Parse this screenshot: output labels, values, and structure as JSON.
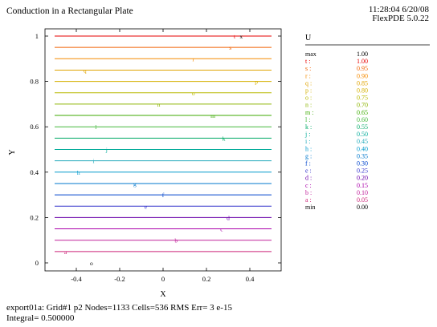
{
  "header": {
    "title": "Conduction in a Rectangular Plate",
    "timestamp": "11:28:04 6/20/08",
    "version": "FlexPDE 5.0.22"
  },
  "footer": {
    "line1": "export01a:  Grid#1  p2  Nodes=1133 Cells=536 RMS Err= 3 e-15",
    "line2": "Integral=   0.500000"
  },
  "chart_data": {
    "type": "contour",
    "title": "Conduction in a Rectangular Plate",
    "xlabel": "X",
    "ylabel": "Y",
    "xlim": [
      -0.5,
      0.5
    ],
    "ylim": [
      0,
      1
    ],
    "xticks": [
      -0.4,
      -0.2,
      0,
      0.2,
      0.4
    ],
    "xtick_labels": [
      "-0.4",
      "-0.2",
      "0",
      "0.2",
      "0.4"
    ],
    "yticks": [
      0,
      0.2,
      0.4,
      0.6,
      0.8,
      1
    ],
    "ytick_labels": [
      "0",
      "0.2",
      "0.4",
      "0.6",
      "0.8",
      "1"
    ],
    "legend_title": "U",
    "legend_position": "right",
    "max_label": "max",
    "max_value": "1.00",
    "min_label": "min",
    "min_value": "0.00",
    "contours": [
      {
        "label": "t",
        "value": 1.0,
        "value_text": "1.00",
        "color": "#e60000",
        "tag_x": 0.33
      },
      {
        "label": "s",
        "value": 0.95,
        "value_text": "0.95",
        "color": "#f06000",
        "tag_x": 0.31
      },
      {
        "label": "r",
        "value": 0.9,
        "value_text": "0.90",
        "color": "#f58a00",
        "tag_x": 0.14
      },
      {
        "label": "q",
        "value": 0.85,
        "value_text": "0.85",
        "color": "#e0a300",
        "tag_x": -0.36
      },
      {
        "label": "p",
        "value": 0.8,
        "value_text": "0.80",
        "color": "#d4b000",
        "tag_x": 0.43
      },
      {
        "label": "o",
        "value": 0.75,
        "value_text": "0.75",
        "color": "#b8b800",
        "tag_x": 0.14
      },
      {
        "label": "n",
        "value": 0.7,
        "value_text": "0.70",
        "color": "#8cb400",
        "tag_x": -0.02
      },
      {
        "label": "m",
        "value": 0.65,
        "value_text": "0.65",
        "color": "#3caa00",
        "tag_x": 0.23
      },
      {
        "label": "l",
        "value": 0.6,
        "value_text": "0.60",
        "color": "#44b83c",
        "tag_x": -0.31
      },
      {
        "label": "k",
        "value": 0.55,
        "value_text": "0.55",
        "color": "#00aa66",
        "tag_x": 0.28
      },
      {
        "label": "j",
        "value": 0.5,
        "value_text": "0.50",
        "color": "#00aa99",
        "tag_x": -0.26
      },
      {
        "label": "i",
        "value": 0.45,
        "value_text": "0.45",
        "color": "#22aabb",
        "tag_x": -0.32
      },
      {
        "label": "h",
        "value": 0.4,
        "value_text": "0.40",
        "color": "#0099cc",
        "tag_x": -0.39
      },
      {
        "label": "g",
        "value": 0.35,
        "value_text": "0.35",
        "color": "#0077cc",
        "tag_x": -0.13
      },
      {
        "label": "f",
        "value": 0.3,
        "value_text": "0.30",
        "color": "#0044cc",
        "tag_x": 0.0
      },
      {
        "label": "e",
        "value": 0.25,
        "value_text": "0.25",
        "color": "#3333cc",
        "tag_x": -0.08
      },
      {
        "label": "d",
        "value": 0.2,
        "value_text": "0.20",
        "color": "#6a00aa",
        "tag_x": 0.3
      },
      {
        "label": "c",
        "value": 0.15,
        "value_text": "0.15",
        "color": "#aa00aa",
        "tag_x": 0.27
      },
      {
        "label": "b",
        "value": 0.1,
        "value_text": "0.10",
        "color": "#c0209a",
        "tag_x": 0.06
      },
      {
        "label": "a",
        "value": 0.05,
        "value_text": "0.05",
        "color": "#cc2277",
        "tag_x": -0.45
      }
    ],
    "extra_markers": [
      {
        "label": "x",
        "x": 0.36,
        "y": 1.0
      },
      {
        "label": "o",
        "x": -0.33,
        "y": 0.0
      }
    ]
  }
}
